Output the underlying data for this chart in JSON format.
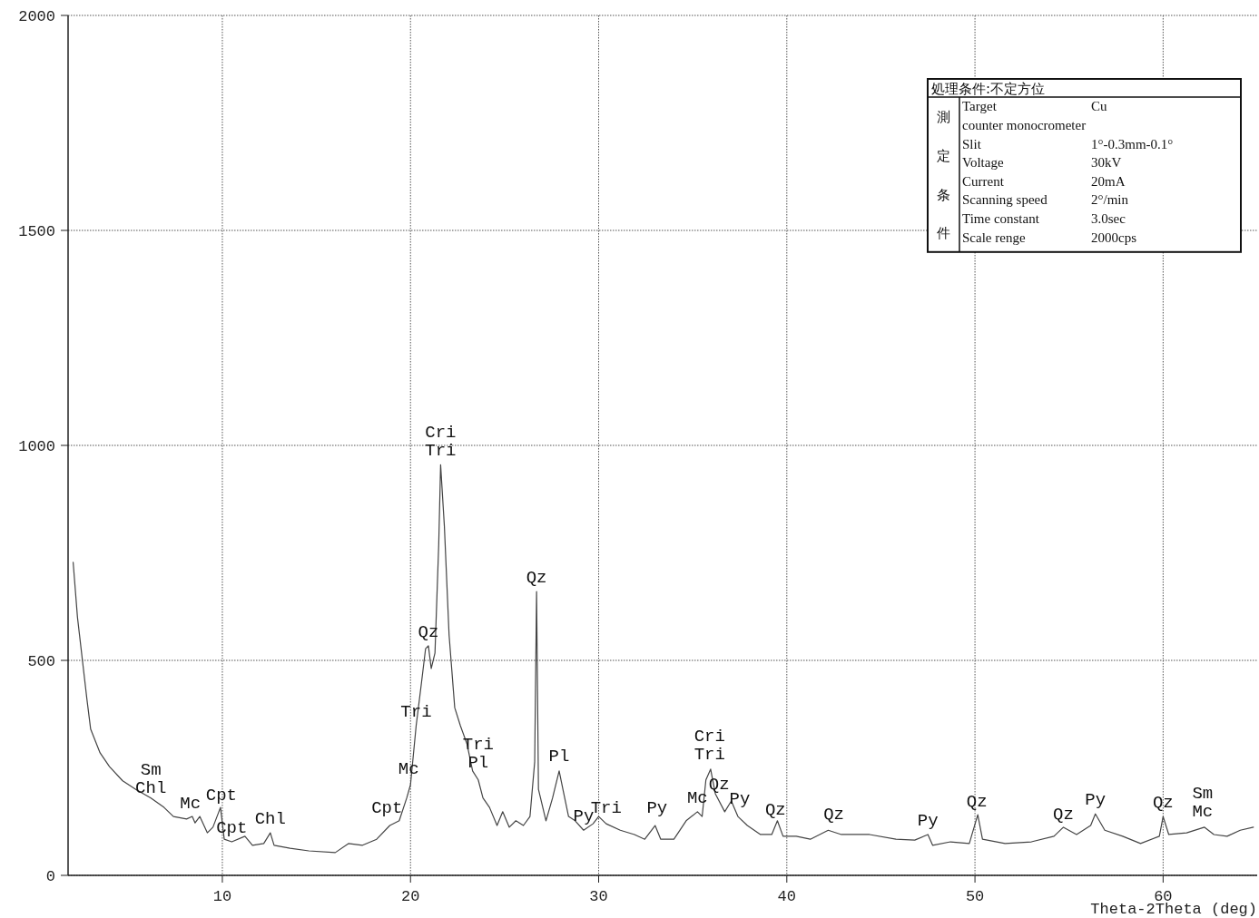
{
  "chart_data": {
    "type": "line",
    "xlabel": "Theta-2Theta (deg)",
    "xlim": [
      1.8,
      65
    ],
    "xticks": [
      10,
      20,
      30,
      40,
      50,
      60
    ],
    "ylim": [
      0,
      2000
    ],
    "yticks": [
      0,
      500,
      1000,
      1500,
      2000
    ],
    "grid": true,
    "marker": "none",
    "line_style": "solid",
    "series": [
      {
        "color": "#444444",
        "x": [
          2.07,
          2.3,
          2.8,
          3.0,
          3.5,
          4.0,
          4.7,
          5.4,
          6.2,
          6.9,
          7.4,
          8.1,
          8.4,
          8.55,
          8.8,
          9.2,
          9.5,
          9.9,
          10.1,
          10.5,
          11.2,
          11.6,
          12.2,
          12.55,
          12.75,
          13.6,
          14.6,
          16.0,
          16.7,
          17.45,
          18.2,
          18.9,
          19.4,
          19.8,
          20.0,
          20.3,
          20.6,
          20.8,
          20.95,
          21.1,
          21.3,
          21.5,
          21.6,
          21.8,
          22.05,
          22.35,
          22.65,
          23.0,
          23.3,
          23.6,
          23.85,
          24.2,
          24.6,
          24.9,
          25.25,
          25.6,
          26.0,
          26.35,
          26.6,
          26.7,
          26.8,
          27.2,
          27.55,
          27.9,
          28.1,
          28.4,
          28.75,
          29.2,
          29.7,
          30.0,
          30.4,
          31.15,
          31.9,
          32.45,
          33.0,
          33.3,
          34.0,
          34.65,
          35.25,
          35.5,
          35.7,
          35.95,
          36.2,
          36.7,
          37.05,
          37.4,
          37.9,
          38.6,
          39.2,
          39.5,
          39.8,
          40.5,
          41.25,
          42.2,
          42.9,
          44.4,
          45.8,
          46.8,
          47.5,
          47.75,
          48.7,
          49.7,
          50.15,
          50.4,
          51.6,
          53.0,
          54.2,
          54.7,
          55.4,
          56.15,
          56.4,
          56.9,
          57.85,
          58.8,
          59.8,
          60.0,
          60.3,
          61.25,
          62.2,
          62.7,
          63.4,
          64.1,
          64.8
        ],
        "values": [
          728,
          600,
          410,
          340,
          285,
          253,
          220,
          200,
          180,
          158,
          137,
          131,
          137,
          122,
          137,
          99,
          112,
          158,
          84,
          78,
          91,
          70,
          74,
          99,
          70,
          63,
          57,
          53,
          74,
          70,
          84,
          116,
          127,
          180,
          211,
          348,
          454,
          527,
          534,
          481,
          517,
          770,
          955,
          812,
          559,
          390,
          348,
          306,
          243,
          222,
          180,
          158,
          116,
          148,
          112,
          127,
          116,
          137,
          264,
          660,
          200,
          127,
          180,
          243,
          200,
          137,
          127,
          105,
          120,
          137,
          120,
          105,
          95,
          84,
          116,
          84,
          84,
          127,
          148,
          137,
          222,
          247,
          190,
          148,
          173,
          137,
          116,
          95,
          95,
          127,
          91,
          91,
          84,
          105,
          95,
          95,
          84,
          82,
          95,
          70,
          78,
          74,
          141,
          84,
          74,
          78,
          91,
          112,
          95,
          116,
          143,
          105,
          91,
          74,
          91,
          137,
          95,
          99,
          112,
          95,
          91,
          105,
          112
        ]
      }
    ],
    "annotations": [
      "処理条件:不定方位",
      "測定条件",
      "Target\tCu",
      "counter  monocrometer",
      "Slit\t1°-0.3mm-0.1°",
      "Voltage\t30kV",
      "Current\t20mA",
      "Scanning speed\t2°/min",
      "Time constant\t3.0sec",
      "Scale renge\t2000cps",
      {
        "text": "Sm\nChl",
        "x": 6.2,
        "y": 170
      },
      {
        "text": "Mc",
        "x": 8.3,
        "y": 135
      },
      {
        "text": "Cpt",
        "x": 9.95,
        "y": 155
      },
      {
        "text": "Cpt",
        "x": 10.5,
        "y": 78
      },
      {
        "text": "Chl",
        "x": 12.55,
        "y": 99
      },
      {
        "text": "Cpt",
        "x": 18.75,
        "y": 125
      },
      {
        "text": "Mc",
        "x": 19.9,
        "y": 215
      },
      {
        "text": "Tri",
        "x": 20.3,
        "y": 348
      },
      {
        "text": "Qz",
        "x": 20.95,
        "y": 534
      },
      {
        "text": "Cri\nTri",
        "x": 21.6,
        "y": 955
      },
      {
        "text": "Tri\nPl",
        "x": 23.6,
        "y": 230
      },
      {
        "text": "Qz",
        "x": 26.7,
        "y": 660
      },
      {
        "text": "Pl",
        "x": 27.9,
        "y": 245
      },
      {
        "text": "Py",
        "x": 29.2,
        "y": 105
      },
      {
        "text": "Tri",
        "x": 30.4,
        "y": 125
      },
      {
        "text": "Py",
        "x": 33.1,
        "y": 125
      },
      {
        "text": "Mc",
        "x": 35.25,
        "y": 148
      },
      {
        "text": "Cri\nTri",
        "x": 35.9,
        "y": 250
      },
      {
        "text": "Qz",
        "x": 36.4,
        "y": 180
      },
      {
        "text": "Py",
        "x": 37.5,
        "y": 145
      },
      {
        "text": "Qz",
        "x": 39.4,
        "y": 120
      },
      {
        "text": "Qz",
        "x": 42.5,
        "y": 110
      },
      {
        "text": "Py",
        "x": 47.5,
        "y": 95
      },
      {
        "text": "Qz",
        "x": 50.1,
        "y": 140
      },
      {
        "text": "Qz",
        "x": 54.7,
        "y": 110
      },
      {
        "text": "Py",
        "x": 56.4,
        "y": 143
      },
      {
        "text": "Qz",
        "x": 60.0,
        "y": 137
      },
      {
        "text": "Sm\nMc",
        "x": 62.1,
        "y": 115
      }
    ]
  }
}
